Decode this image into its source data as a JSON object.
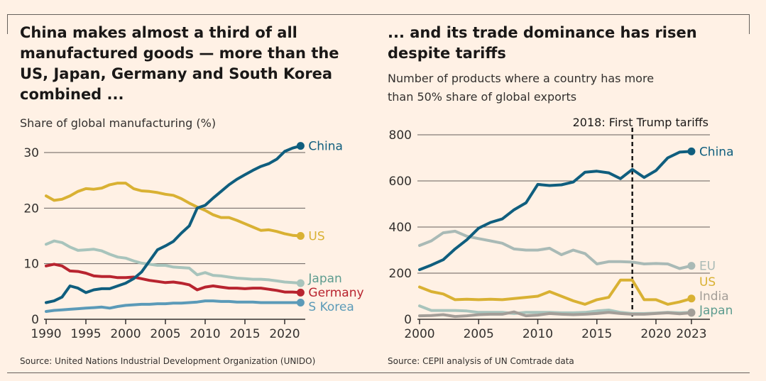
{
  "left": {
    "title": "China makes almost a third of all manufactured goods — more than the US, Japan, Germany and South Korea combined ...",
    "title_lines": [
      "China makes almost a third of all",
      "manufactured goods — more than the",
      "US, Japan, Germany and South Korea",
      "combined ..."
    ],
    "subtitle": "Share of global manufacturing (%)",
    "source": "Source: United Nations Industrial Development Organization (UNIDO)"
  },
  "right": {
    "title": "... and its trade dominance has risen despite tariffs",
    "title_lines": [
      "... and its trade dominance has risen",
      "despite tariffs"
    ],
    "subtitle_lines": [
      "Number of products where a country has more",
      "than 50% share of global exports"
    ],
    "source": "Source: CEPII analysis of UN Comtrade data",
    "annotation": "2018: First Trump tariffs"
  },
  "chart_data": [
    {
      "type": "line",
      "ylabel": "Share of global manufacturing (%)",
      "ylim": [
        0,
        30
      ],
      "yticks": [
        0,
        10,
        20,
        30
      ],
      "xticks": [
        1990,
        1995,
        2000,
        2005,
        2010,
        2015,
        2020
      ],
      "x_start": 1990,
      "grid": true,
      "series": [
        {
          "name": "China",
          "color": "#0f5e7e",
          "values": [
            3.0,
            3.3,
            4.0,
            6.0,
            5.6,
            4.8,
            5.3,
            5.5,
            5.5,
            6.0,
            6.5,
            7.3,
            8.5,
            10.5,
            12.5,
            13.2,
            14.0,
            15.5,
            16.8,
            20.0,
            20.5,
            21.8,
            23.0,
            24.2,
            25.2,
            26.0,
            26.8,
            27.5,
            28.0,
            28.8,
            30.2,
            30.8,
            31.2
          ]
        },
        {
          "name": "US",
          "color": "#d9b133",
          "values": [
            22.2,
            21.4,
            21.6,
            22.2,
            23.0,
            23.5,
            23.4,
            23.6,
            24.2,
            24.5,
            24.5,
            23.5,
            23.1,
            23.0,
            22.8,
            22.5,
            22.3,
            21.7,
            20.9,
            20.2,
            19.6,
            18.8,
            18.3,
            18.3,
            17.8,
            17.2,
            16.6,
            16.0,
            16.1,
            15.8,
            15.4,
            15.1,
            15.0
          ]
        },
        {
          "name": "Japan",
          "color": "#a8c4bc",
          "label_color": "#5d9c8f",
          "values": [
            13.5,
            14.1,
            13.8,
            13.0,
            12.4,
            12.5,
            12.6,
            12.3,
            11.7,
            11.2,
            11.0,
            10.5,
            10.1,
            9.9,
            9.7,
            9.7,
            9.4,
            9.3,
            9.2,
            8.0,
            8.4,
            7.9,
            7.8,
            7.6,
            7.4,
            7.3,
            7.2,
            7.2,
            7.1,
            6.9,
            6.7,
            6.6,
            6.5
          ]
        },
        {
          "name": "Germany",
          "color": "#b8242f",
          "values": [
            9.6,
            9.9,
            9.6,
            8.7,
            8.6,
            8.3,
            7.8,
            7.7,
            7.7,
            7.5,
            7.5,
            7.6,
            7.3,
            7.0,
            6.8,
            6.6,
            6.7,
            6.5,
            6.2,
            5.3,
            5.8,
            6.0,
            5.8,
            5.6,
            5.6,
            5.5,
            5.6,
            5.6,
            5.4,
            5.2,
            4.9,
            4.9,
            4.8
          ]
        },
        {
          "name": "S Korea",
          "color": "#5b9ab8",
          "values": [
            1.4,
            1.6,
            1.7,
            1.8,
            1.9,
            2.0,
            2.1,
            2.2,
            2.0,
            2.3,
            2.5,
            2.6,
            2.7,
            2.7,
            2.8,
            2.8,
            2.9,
            2.9,
            3.0,
            3.1,
            3.3,
            3.3,
            3.2,
            3.2,
            3.1,
            3.1,
            3.1,
            3.0,
            3.0,
            3.0,
            3.0,
            3.0,
            3.0
          ]
        }
      ]
    },
    {
      "type": "line",
      "ylabel": "Number of products where a country has more than 50% share of global exports",
      "ylim": [
        0,
        800
      ],
      "yticks": [
        0,
        200,
        400,
        600,
        800
      ],
      "xticks": [
        2000,
        2005,
        2010,
        2015,
        2020,
        2023
      ],
      "x_start": 2000,
      "grid": true,
      "vline": {
        "x": 2018,
        "label": "2018: First Trump tariffs"
      },
      "series": [
        {
          "name": "China",
          "color": "#0f5e7e",
          "values": [
            215,
            235,
            258,
            305,
            345,
            395,
            420,
            435,
            475,
            505,
            585,
            580,
            583,
            595,
            638,
            642,
            635,
            610,
            650,
            615,
            645,
            700,
            725,
            728
          ]
        },
        {
          "name": "EU",
          "color": "#a9bab6",
          "label_color": "#a9bab6",
          "values": [
            320,
            340,
            375,
            382,
            360,
            350,
            340,
            330,
            305,
            300,
            300,
            308,
            280,
            300,
            285,
            240,
            250,
            250,
            248,
            240,
            242,
            240,
            220,
            232
          ]
        },
        {
          "name": "US",
          "color": "#d9b133",
          "values": [
            140,
            120,
            110,
            85,
            87,
            85,
            87,
            85,
            90,
            95,
            100,
            120,
            100,
            80,
            65,
            85,
            95,
            170,
            170,
            85,
            85,
            65,
            75,
            90
          ]
        },
        {
          "name": "India",
          "color": "#a39e98",
          "values": [
            15,
            16,
            20,
            12,
            15,
            20,
            22,
            22,
            32,
            15,
            18,
            25,
            22,
            20,
            22,
            25,
            30,
            25,
            22,
            22,
            25,
            28,
            24,
            28
          ]
        },
        {
          "name": "Japan",
          "color": "#a8c4bc",
          "label_color": "#5d9c8f",
          "values": [
            58,
            38,
            38,
            38,
            36,
            30,
            30,
            30,
            25,
            30,
            30,
            30,
            28,
            28,
            30,
            36,
            40,
            30,
            25,
            25,
            27,
            30,
            28,
            30
          ]
        }
      ]
    }
  ]
}
